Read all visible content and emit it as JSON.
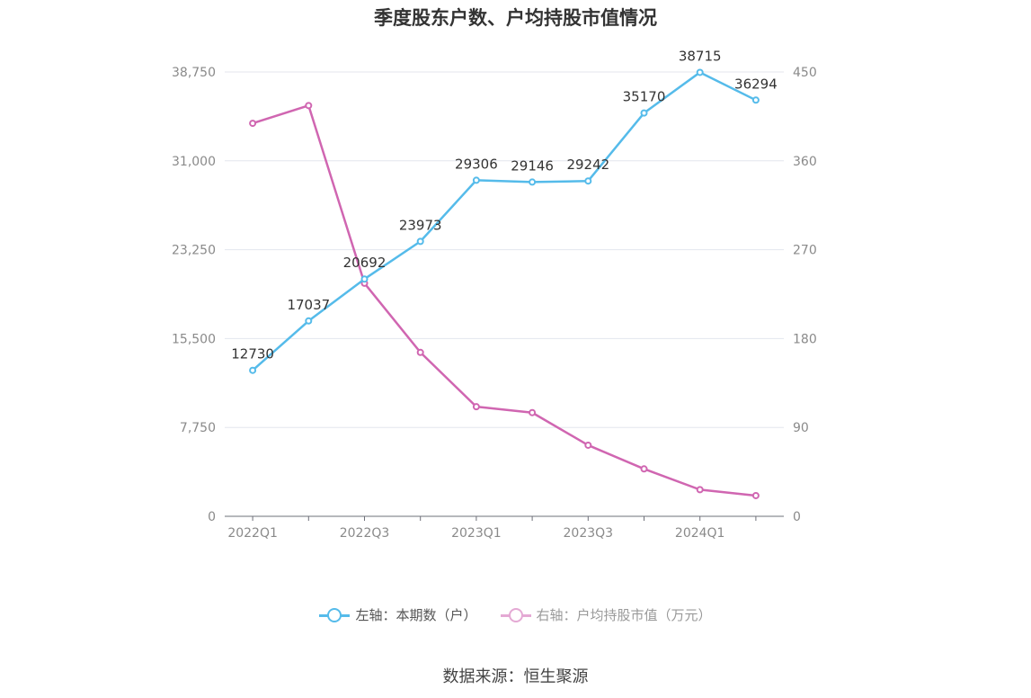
{
  "title": "季度股东户数、户均持股市值情况",
  "source": "数据来源：恒生聚源",
  "legend": [
    {
      "label": "左轴：本期数（户）",
      "color": "#55bbea",
      "faded": false
    },
    {
      "label": "右轴：户均持股市值（万元）",
      "color": "#e4a9d4",
      "faded": true
    }
  ],
  "chart_data": {
    "type": "line",
    "title": "季度股东户数、户均持股市值情况",
    "categories": [
      "2022Q1",
      "2022Q2",
      "2022Q3",
      "2022Q4",
      "2023Q1",
      "2023Q2",
      "2023Q3",
      "2023Q4",
      "2024Q1",
      "2024Q2"
    ],
    "x_tick_labels": [
      "2022Q1",
      "2022Q3",
      "2023Q1",
      "2023Q3",
      "2024Q1"
    ],
    "y_left": {
      "range": [
        0,
        38750
      ],
      "ticks": [
        "0",
        "7,750",
        "15,500",
        "23,250",
        "31,000",
        "38,750"
      ]
    },
    "y_right": {
      "range": [
        0,
        450
      ],
      "ticks": [
        "0",
        "90",
        "180",
        "270",
        "360",
        "450"
      ]
    },
    "series": [
      {
        "name": "左轴：本期数（户）",
        "axis": "left",
        "color": "#55bbea",
        "values": [
          12730,
          17037,
          20692,
          23973,
          29306,
          29146,
          29242,
          35170,
          38715,
          36294
        ],
        "labels": [
          "12730",
          "17037",
          "20692",
          "23973",
          "29306",
          "29146",
          "29242",
          "35170",
          "38715",
          "36294"
        ]
      },
      {
        "name": "右轴：户均持股市值（万元）",
        "axis": "right",
        "color": "#d066b1",
        "values": [
          398,
          416,
          236,
          166,
          111,
          105,
          72,
          48,
          27,
          21
        ]
      }
    ],
    "grid": true,
    "legend_position": "bottom"
  }
}
